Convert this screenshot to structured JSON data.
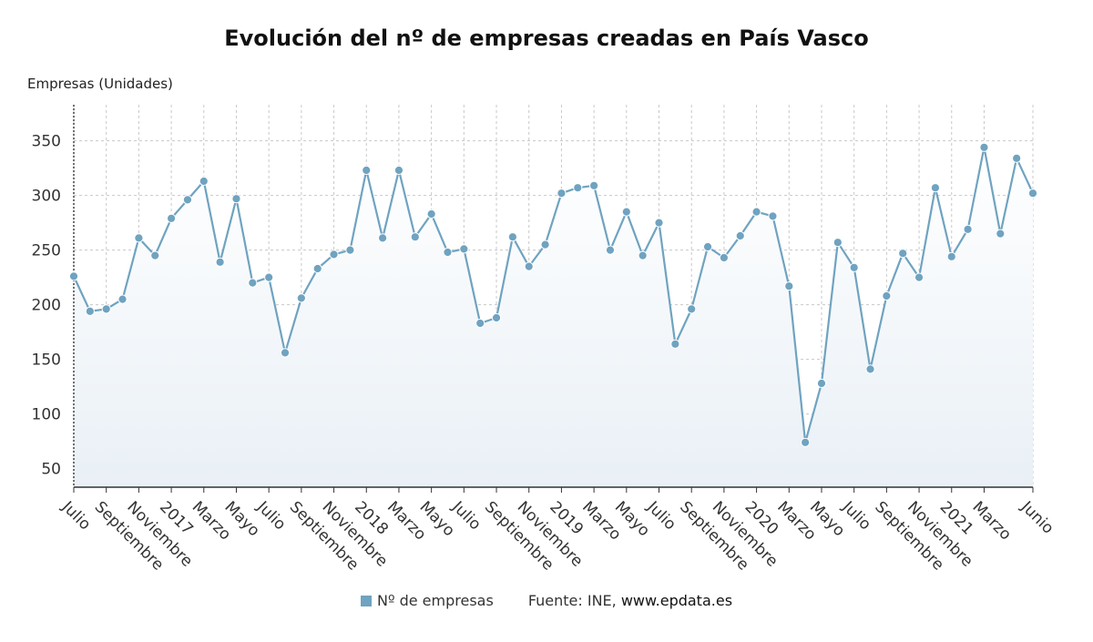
{
  "chart_data": {
    "type": "line",
    "title": "Evolución del nº de empresas creadas en País Vasco",
    "ylabel": "Empresas (Unidades)",
    "xlabel": "",
    "ylim": [
      33,
      383
    ],
    "yticks": [
      50,
      100,
      150,
      200,
      250,
      300,
      350
    ],
    "grid": true,
    "legend_position": "bottom",
    "x_tick_labels": [
      "Julio",
      "Septiembre",
      "Noviembre",
      "2017",
      "Marzo",
      "Mayo",
      "Julio",
      "Septiembre",
      "Noviembre",
      "2018",
      "Marzo",
      "Mayo",
      "Julio",
      "Septiembre",
      "Noviembre",
      "2019",
      "Marzo",
      "Mayo",
      "Julio",
      "Septiembre",
      "Noviembre",
      "2020",
      "Marzo",
      "Mayo",
      "Julio",
      "Septiembre",
      "Noviembre",
      "2021",
      "Marzo",
      "Junio"
    ],
    "x_tick_index": [
      0,
      2,
      4,
      6,
      8,
      10,
      12,
      14,
      16,
      18,
      20,
      22,
      24,
      26,
      28,
      30,
      32,
      34,
      36,
      38,
      40,
      42,
      44,
      46,
      48,
      50,
      52,
      54,
      56,
      59
    ],
    "series": [
      {
        "name": "Nº de empresas",
        "color": "#6fa3c0",
        "values": [
          226,
          194,
          196,
          205,
          261,
          245,
          279,
          296,
          313,
          239,
          297,
          220,
          225,
          156,
          206,
          233,
          246,
          250,
          323,
          261,
          323,
          262,
          283,
          248,
          251,
          183,
          188,
          262,
          235,
          255,
          302,
          307,
          309,
          250,
          285,
          245,
          275,
          164,
          196,
          253,
          243,
          263,
          285,
          281,
          217,
          74,
          128,
          257,
          234,
          141,
          208,
          247,
          225,
          307,
          244,
          269,
          344,
          265,
          334,
          302
        ]
      }
    ]
  },
  "legend": {
    "series_label": "Nº de empresas",
    "source_prefix": "Fuente: INE,",
    "source_site": "www.epdata.es"
  }
}
